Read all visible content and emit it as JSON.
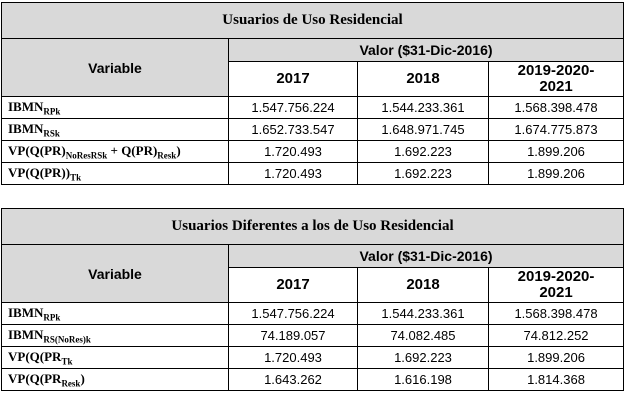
{
  "tables": [
    {
      "title": "Usuarios de Uso Residencial",
      "variable_header": "Variable",
      "value_header": "Valor ($31-Dic-2016)",
      "years": [
        "2017",
        "2018",
        "2019-2020-2021"
      ],
      "rows": [
        {
          "label": [
            "IBMN",
            "RPk"
          ],
          "values": [
            "1.547.756.224",
            "1.544.233.361",
            "1.568.398.478"
          ]
        },
        {
          "label": [
            "IBMN",
            "RSk"
          ],
          "values": [
            "1.652.733.547",
            "1.648.971.745",
            "1.674.775.873"
          ]
        },
        {
          "label": [
            "VP(Q(PR)",
            "NoResRSk",
            " + Q(PR)",
            "Resk",
            ")"
          ],
          "values": [
            "1.720.493",
            "1.692.223",
            "1.899.206"
          ]
        },
        {
          "label": [
            "VP(Q(PR))",
            "Tk"
          ],
          "values": [
            "1.720.493",
            "1.692.223",
            "1.899.206"
          ]
        }
      ]
    },
    {
      "title": "Usuarios Diferentes a los de Uso Residencial",
      "variable_header": "Variable",
      "value_header": "Valor ($31-Dic-2016)",
      "years": [
        "2017",
        "2018",
        "2019-2020-2021"
      ],
      "rows": [
        {
          "label": [
            "IBMN",
            "RPk"
          ],
          "values": [
            "1.547.756.224",
            "1.544.233.361",
            "1.568.398.478"
          ]
        },
        {
          "label": [
            "IBMN",
            "RS(NoRes)k"
          ],
          "values": [
            "74.189.057",
            "74.082.485",
            "74.812.252"
          ]
        },
        {
          "label": [
            "VP(Q(PR",
            "Tk"
          ],
          "values": [
            "1.720.493",
            "1.692.223",
            "1.899.206"
          ]
        },
        {
          "label": [
            "VP(Q(PR",
            "Resk",
            ")"
          ],
          "values": [
            "1.643.262",
            "1.616.198",
            "1.814.368"
          ]
        }
      ]
    }
  ]
}
